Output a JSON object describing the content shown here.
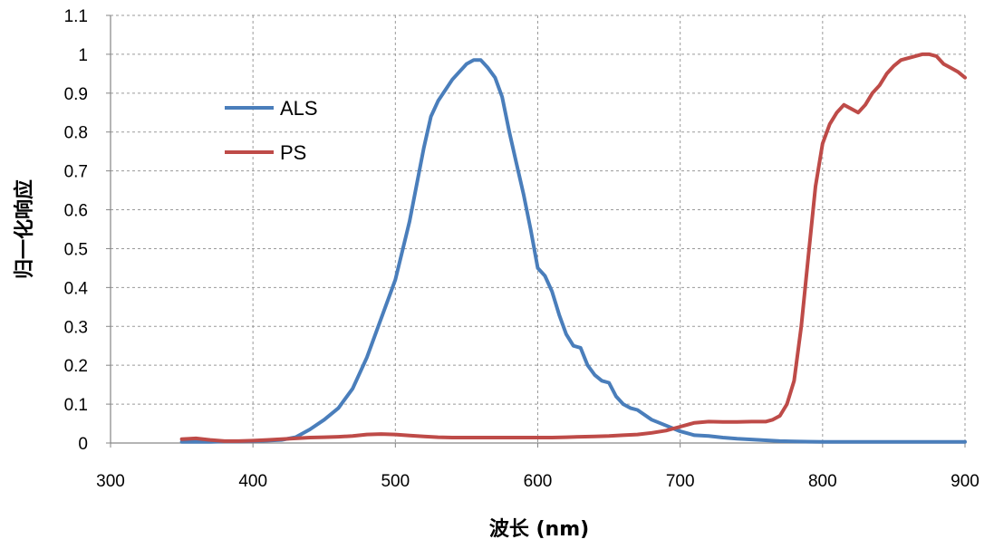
{
  "chart_data": {
    "type": "line",
    "xlabel": "波长 (nm)",
    "ylabel": "归一化响应",
    "xlim": [
      300,
      900
    ],
    "ylim": [
      0,
      1.1
    ],
    "xticks": [
      300,
      400,
      500,
      600,
      700,
      800,
      900
    ],
    "xtick_labels": [
      "300",
      "400",
      "500",
      "600",
      "700",
      "800",
      "900"
    ],
    "yticks": [
      0,
      0.1,
      0.2,
      0.3,
      0.4,
      0.5,
      0.6,
      0.7,
      0.8,
      0.9,
      1,
      1.1
    ],
    "ytick_labels": [
      "0",
      "0.1",
      "0.2",
      "0.3",
      "0.4",
      "0.5",
      "0.6",
      "0.7",
      "0.8",
      "0.9",
      "1",
      "1.1"
    ],
    "grid": true,
    "legend": "upper-left",
    "series": [
      {
        "name": "ALS",
        "color": "#4a7ebb",
        "x": [
          350,
          360,
          370,
          380,
          390,
          400,
          410,
          420,
          430,
          440,
          450,
          460,
          470,
          480,
          490,
          500,
          510,
          520,
          525,
          530,
          540,
          550,
          555,
          560,
          565,
          570,
          575,
          580,
          585,
          590,
          595,
          600,
          605,
          610,
          615,
          620,
          625,
          630,
          635,
          640,
          645,
          650,
          655,
          660,
          665,
          670,
          680,
          690,
          700,
          710,
          720,
          730,
          740,
          750,
          760,
          770,
          780,
          800,
          820,
          850,
          880,
          900
        ],
        "y": [
          0.003,
          0.003,
          0.003,
          0.004,
          0.004,
          0.005,
          0.006,
          0.008,
          0.015,
          0.035,
          0.06,
          0.09,
          0.14,
          0.22,
          0.32,
          0.42,
          0.57,
          0.76,
          0.84,
          0.88,
          0.935,
          0.975,
          0.985,
          0.985,
          0.965,
          0.94,
          0.89,
          0.8,
          0.72,
          0.64,
          0.55,
          0.45,
          0.43,
          0.39,
          0.33,
          0.28,
          0.25,
          0.245,
          0.2,
          0.175,
          0.16,
          0.155,
          0.12,
          0.1,
          0.09,
          0.085,
          0.06,
          0.045,
          0.03,
          0.02,
          0.018,
          0.014,
          0.011,
          0.009,
          0.007,
          0.005,
          0.004,
          0.003,
          0.003,
          0.003,
          0.003,
          0.003
        ]
      },
      {
        "name": "PS",
        "color": "#be4b48",
        "x": [
          350,
          360,
          370,
          380,
          390,
          400,
          410,
          420,
          430,
          440,
          450,
          460,
          470,
          480,
          490,
          500,
          510,
          520,
          530,
          540,
          550,
          560,
          570,
          580,
          590,
          600,
          610,
          620,
          630,
          640,
          650,
          660,
          670,
          680,
          690,
          700,
          710,
          720,
          730,
          740,
          750,
          760,
          765,
          770,
          775,
          780,
          785,
          790,
          795,
          800,
          805,
          810,
          815,
          820,
          825,
          830,
          835,
          840,
          845,
          850,
          855,
          860,
          865,
          870,
          875,
          880,
          885,
          890,
          895,
          900
        ],
        "y": [
          0.01,
          0.012,
          0.008,
          0.005,
          0.005,
          0.006,
          0.008,
          0.01,
          0.012,
          0.014,
          0.015,
          0.016,
          0.018,
          0.022,
          0.023,
          0.022,
          0.019,
          0.017,
          0.015,
          0.014,
          0.014,
          0.014,
          0.014,
          0.014,
          0.014,
          0.014,
          0.014,
          0.015,
          0.016,
          0.017,
          0.018,
          0.02,
          0.022,
          0.026,
          0.032,
          0.042,
          0.052,
          0.055,
          0.054,
          0.054,
          0.055,
          0.055,
          0.06,
          0.07,
          0.1,
          0.16,
          0.3,
          0.48,
          0.66,
          0.77,
          0.82,
          0.85,
          0.87,
          0.86,
          0.85,
          0.87,
          0.9,
          0.92,
          0.95,
          0.97,
          0.985,
          0.99,
          0.995,
          1.0,
          1.0,
          0.995,
          0.975,
          0.965,
          0.955,
          0.94
        ]
      }
    ]
  }
}
